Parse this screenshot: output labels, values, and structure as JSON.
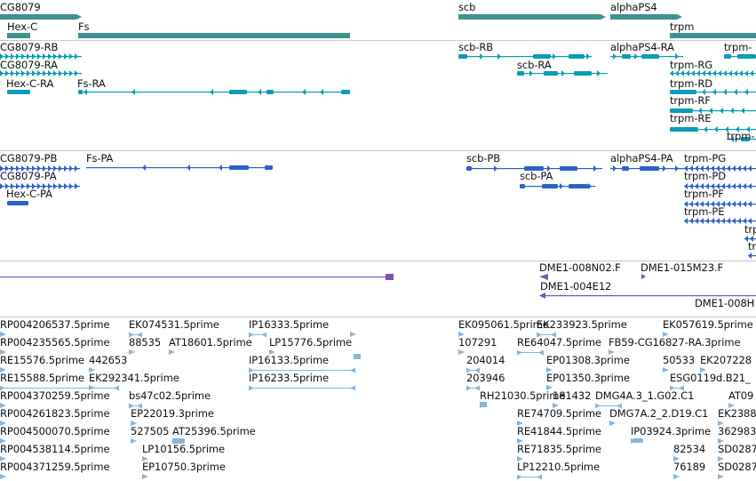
{
  "colors": {
    "gene": "#3f9290",
    "transcript": "#0a9cb8",
    "protein": "#2a62c9",
    "clone": "#7a52b3",
    "est": "#86b6dc",
    "divider": "#c9c9c9"
  },
  "tracks": {
    "genes": [
      {
        "label": "CG8079",
        "color_key": "gene"
      },
      {
        "label": "Hex-C",
        "color_key": "gene"
      },
      {
        "label": "Fs",
        "color_key": "gene"
      },
      {
        "label": "scb",
        "color_key": "gene"
      },
      {
        "label": "alphaPS4",
        "color_key": "gene"
      },
      {
        "label": "trpm",
        "color_key": "gene"
      }
    ],
    "transcripts": [
      {
        "label": "CG8079-RB",
        "color_key": "transcript"
      },
      {
        "label": "CG8079-RA",
        "color_key": "transcript"
      },
      {
        "label": "Hex-C-RA",
        "color_key": "transcript"
      },
      {
        "label": "Fs-RA",
        "color_key": "transcript"
      },
      {
        "label": "scb-RB",
        "color_key": "transcript"
      },
      {
        "label": "scb-RA",
        "color_key": "transcript"
      },
      {
        "label": "alphaPS4-RA",
        "color_key": "transcript"
      },
      {
        "label": "trpm-",
        "color_key": "transcript"
      },
      {
        "label": "trpm-RG",
        "color_key": "transcript"
      },
      {
        "label": "trpm-RD",
        "color_key": "transcript"
      },
      {
        "label": "trpm-RF",
        "color_key": "transcript"
      },
      {
        "label": "trpm-RE",
        "color_key": "transcript"
      },
      {
        "label": "trpm-",
        "color_key": "transcript"
      }
    ],
    "proteins": [
      {
        "label": "CG8079-PB",
        "color_key": "protein"
      },
      {
        "label": "CG8079-PA",
        "color_key": "protein"
      },
      {
        "label": "Hex-C-PA",
        "color_key": "protein"
      },
      {
        "label": "Fs-PA",
        "color_key": "protein"
      },
      {
        "label": "scb-PB",
        "color_key": "protein"
      },
      {
        "label": "scb-PA",
        "color_key": "protein"
      },
      {
        "label": "alphaPS4-PA",
        "color_key": "protein"
      },
      {
        "label": "trpm-PG",
        "color_key": "protein"
      },
      {
        "label": "trpm-PD",
        "color_key": "protein"
      },
      {
        "label": "trpm-PF",
        "color_key": "protein"
      },
      {
        "label": "trpm-PE",
        "color_key": "protein"
      },
      {
        "label": "trp",
        "color_key": "protein"
      },
      {
        "label": "tr",
        "color_key": "protein"
      }
    ],
    "clones": [
      {
        "label": "DME1-008N02.F",
        "color_key": "clone"
      },
      {
        "label": "DME1-015M23.F",
        "color_key": "clone"
      },
      {
        "label": "DME1-004E12",
        "color_key": "clone"
      },
      {
        "label": "DME1-008H",
        "color_key": "clone"
      }
    ],
    "ests": [
      {
        "label": "RP004206537.5prime"
      },
      {
        "label": "EK074531.5prime"
      },
      {
        "label": "IP16333.5prime"
      },
      {
        "label": "EK095061.5prime"
      },
      {
        "label": "EK233923.5prime"
      },
      {
        "label": "EK057619.5prime"
      },
      {
        "label": "RP004235565.5prime"
      },
      {
        "label": "88535"
      },
      {
        "label": "AT18601.5prime"
      },
      {
        "label": "LP15776.5prime"
      },
      {
        "label": "107291"
      },
      {
        "label": "RE64047.5prime"
      },
      {
        "label": "FB59-CG16827-RA.3prime"
      },
      {
        "label": "RE15576.5prime"
      },
      {
        "label": "442653"
      },
      {
        "label": "IP16133.5prime"
      },
      {
        "label": "204014"
      },
      {
        "label": "EP01308.3prime"
      },
      {
        "label": "50533"
      },
      {
        "label": "EK207228"
      },
      {
        "label": "RE15588.5prime"
      },
      {
        "label": "EK292341.5prime"
      },
      {
        "label": "IP16233.5prime"
      },
      {
        "label": "203946"
      },
      {
        "label": "EP01350.3prime"
      },
      {
        "label": "ESG0119d.B21_"
      },
      {
        "label": "RP004370259.5prime"
      },
      {
        "label": "bs47c02.5prime"
      },
      {
        "label": "RH21030.5prime"
      },
      {
        "label": "181432"
      },
      {
        "label": "DMG4A.3_1.G02.C1"
      },
      {
        "label": "AT09"
      },
      {
        "label": "RP004261823.5prime"
      },
      {
        "label": "EP22019.3prime"
      },
      {
        "label": "RE74709.5prime"
      },
      {
        "label": "DMG7A.2_2.D19.C1"
      },
      {
        "label": "EK2388"
      },
      {
        "label": "RP004500070.5prime"
      },
      {
        "label": "527505"
      },
      {
        "label": "AT25396.5prime"
      },
      {
        "label": "RE41844.5prime"
      },
      {
        "label": "IP03924.3prime"
      },
      {
        "label": "362983"
      },
      {
        "label": "RP004538114.5prime"
      },
      {
        "label": "LP10156.5prime"
      },
      {
        "label": "RE71835.5prime"
      },
      {
        "label": "82534"
      },
      {
        "label": "SD0287"
      },
      {
        "label": "RP004371259.5prime"
      },
      {
        "label": "EP10750.3prime"
      },
      {
        "label": "LP12210.5prime"
      },
      {
        "label": "76189"
      },
      {
        "label": "SD0287"
      }
    ]
  }
}
